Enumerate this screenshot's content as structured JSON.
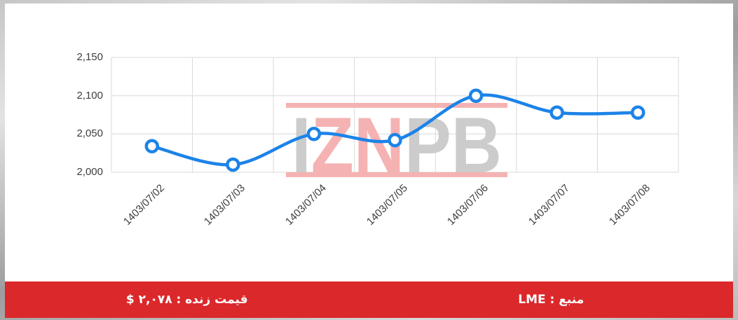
{
  "chart_data": {
    "type": "line",
    "title": "",
    "categories": [
      "1403/07/02",
      "1403/07/03",
      "1403/07/04",
      "1403/07/05",
      "1403/07/06",
      "1403/07/07",
      "1403/07/08"
    ],
    "values": [
      2034,
      2010,
      2050,
      2042,
      2100,
      2078,
      2078
    ],
    "xlabel": "",
    "ylabel": "",
    "ylim": [
      2000,
      2150
    ],
    "yticks": [
      {
        "value": 2150,
        "label": "2,150"
      },
      {
        "value": 2100,
        "label": "2,100"
      },
      {
        "value": 2050,
        "label": "2,050"
      },
      {
        "value": 2000,
        "label": "2,000"
      }
    ],
    "grid": true,
    "legend_position": "none",
    "x_label_rotation": 45,
    "line_color": "#1c83e8",
    "marker_fill": "#ffffff",
    "marker_stroke": "#1c83e8"
  },
  "watermark": {
    "text": "IZNPB",
    "letters": [
      {
        "char": "I",
        "color": "#cccccc"
      },
      {
        "char": "Z",
        "color": "#f5b2b2"
      },
      {
        "char": "N",
        "color": "#f5b2b2"
      },
      {
        "char": "P",
        "color": "#cccccc"
      },
      {
        "char": "B",
        "color": "#cccccc"
      }
    ],
    "band_color": "#f5b2b2"
  },
  "footer": {
    "bg_color": "#db282b",
    "live_price_text": "قیمت زنده : ۲,۰۷۸ $",
    "source_text": "منبع : LME"
  },
  "style": {
    "axis_label_color": "#3d3d3d",
    "grid_color": "#d9d9d9"
  }
}
